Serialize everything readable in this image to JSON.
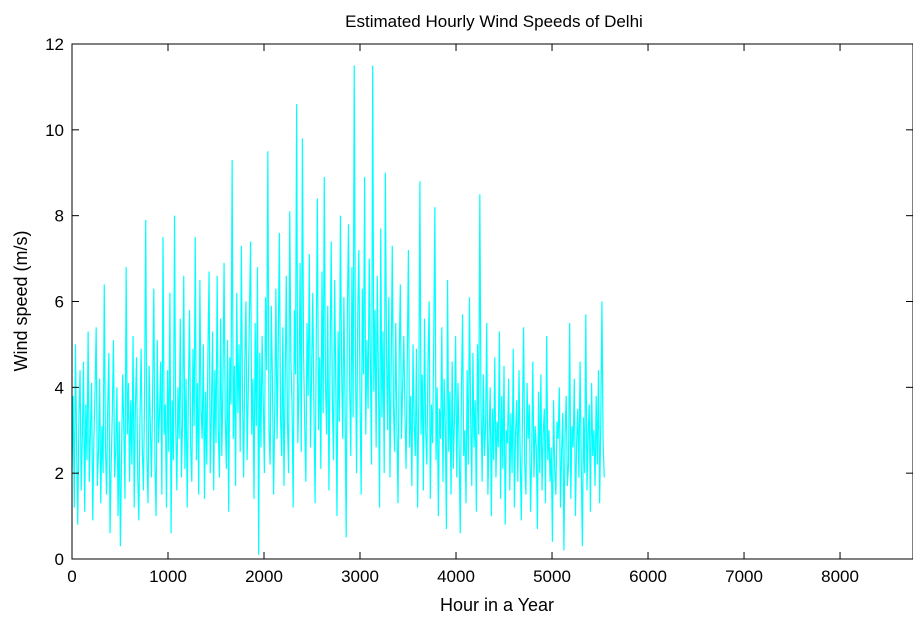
{
  "chart_data": {
    "type": "line",
    "title": "Estimated Hourly Wind Speeds of Delhi",
    "xlabel": "Hour in a Year",
    "ylabel": "Wind speed (m/s)",
    "xlim": [
      0,
      8760
    ],
    "ylim": [
      0,
      12
    ],
    "xticks": [
      0,
      1000,
      2000,
      3000,
      4000,
      5000,
      6000,
      7000,
      8000
    ],
    "yticks": [
      0,
      2,
      4,
      6,
      8,
      10,
      12
    ],
    "grid": false,
    "legend": "none",
    "line_color": "#00FFFF",
    "sampling_note_hidden": true,
    "series": [
      {
        "x_start": 0,
        "x_step": 12,
        "values": [
          2.1,
          3.8,
          1.2,
          5.0,
          2.6,
          0.8,
          3.3,
          4.4,
          1.6,
          2.9,
          4.6,
          1.1,
          3.6,
          2.3,
          5.3,
          1.8,
          3.0,
          4.1,
          0.9,
          2.8,
          3.9,
          5.4,
          1.7,
          2.5,
          4.2,
          1.3,
          3.1,
          2.0,
          6.4,
          2.7,
          1.5,
          3.5,
          4.8,
          0.6,
          2.2,
          3.4,
          5.1,
          1.9,
          2.6,
          4.0,
          1.0,
          3.2,
          0.3,
          2.4,
          4.3,
          3.0,
          1.4,
          6.8,
          2.9,
          4.1,
          1.8,
          3.7,
          2.2,
          5.2,
          1.2,
          3.5,
          4.7,
          2.0,
          0.9,
          3.3,
          4.9,
          2.6,
          1.6,
          3.8,
          7.9,
          2.4,
          1.3,
          4.5,
          3.1,
          1.9,
          3.9,
          6.3,
          2.2,
          1.0,
          5.1,
          2.7,
          3.4,
          4.6,
          1.5,
          7.5,
          2.9,
          3.6,
          1.2,
          4.4,
          2.5,
          6.2,
          0.6,
          3.7,
          2.3,
          8.0,
          3.2,
          1.6,
          4.0,
          2.8,
          5.6,
          1.9,
          3.3,
          6.6,
          2.1,
          4.2,
          1.2,
          3.8,
          5.8,
          2.6,
          1.8,
          4.9,
          3.1,
          7.5,
          2.3,
          4.1,
          1.5,
          6.5,
          3.5,
          2.8,
          5.0,
          1.4,
          3.9,
          2.2,
          4.8,
          6.7,
          2.0,
          3.4,
          5.3,
          1.6,
          4.4,
          2.7,
          6.6,
          3.0,
          1.9,
          5.6,
          2.4,
          4.0,
          6.9,
          3.3,
          2.1,
          5.1,
          1.1,
          4.7,
          3.6,
          9.3,
          2.8,
          4.5,
          1.7,
          6.2,
          3.4,
          5.0,
          2.5,
          7.3,
          3.8,
          1.9,
          4.6,
          6.0,
          2.3,
          3.9,
          5.7,
          7.4,
          2.9,
          4.2,
          1.4,
          5.5,
          3.1,
          6.8,
          0.1,
          4.8,
          2.6,
          5.2,
          3.7,
          2.0,
          6.1,
          4.4,
          9.5,
          3.0,
          2.2,
          5.9,
          4.1,
          1.5,
          3.5,
          6.3,
          2.8,
          4.9,
          7.6,
          3.3,
          2.4,
          5.4,
          1.7,
          4.0,
          6.6,
          3.2,
          2.0,
          8.1,
          4.6,
          3.6,
          1.2,
          5.8,
          4.3,
          10.6,
          2.7,
          3.9,
          6.9,
          2.5,
          9.8,
          4.8,
          3.1,
          1.8,
          5.5,
          3.8,
          7.1,
          2.6,
          4.4,
          6.2,
          3.5,
          1.3,
          5.0,
          8.4,
          3.0,
          4.7,
          2.1,
          6.7,
          3.4,
          8.9,
          4.2,
          2.9,
          5.9,
          1.6,
          4.6,
          7.4,
          3.7,
          2.3,
          6.5,
          4.0,
          1.0,
          5.3,
          3.2,
          8.0,
          4.5,
          2.8,
          6.1,
          3.6,
          0.5,
          5.7,
          7.8,
          4.1,
          2.4,
          6.8,
          3.3,
          11.5,
          4.9,
          2.0,
          5.6,
          7.2,
          3.8,
          1.5,
          6.3,
          4.3,
          8.9,
          2.9,
          5.1,
          3.5,
          7.0,
          4.6,
          2.2,
          11.5,
          3.9,
          5.8,
          2.6,
          6.6,
          4.2,
          1.2,
          7.7,
          3.3,
          5.3,
          2.0,
          9.0,
          4.8,
          3.0,
          6.1,
          1.9,
          4.4,
          7.3,
          3.6,
          2.5,
          5.5,
          3.1,
          1.3,
          4.7,
          6.4,
          2.8,
          4.0,
          5.2,
          3.4,
          2.1,
          4.6,
          7.2,
          2.6,
          3.8,
          1.7,
          5.0,
          3.2,
          2.4,
          4.9,
          1.2,
          3.7,
          8.8,
          2.9,
          4.3,
          1.6,
          5.6,
          3.0,
          2.2,
          4.5,
          6.0,
          1.4,
          3.6,
          2.7,
          5.1,
          8.2,
          2.3,
          4.0,
          1.0,
          3.5,
          2.8,
          5.4,
          1.8,
          4.2,
          3.1,
          0.7,
          6.5,
          2.5,
          3.9,
          1.5,
          4.6,
          2.1,
          3.3,
          5.2,
          1.9,
          4.1,
          2.7,
          0.6,
          3.8,
          5.7,
          2.4,
          3.0,
          1.3,
          4.4,
          2.2,
          6.1,
          3.4,
          1.7,
          4.8,
          2.6,
          3.7,
          1.1,
          5.0,
          2.9,
          8.5,
          3.6,
          1.8,
          4.3,
          2.4,
          3.1,
          5.5,
          1.5,
          2.8,
          4.0,
          1.0,
          3.5,
          2.3,
          4.7,
          1.9,
          3.2,
          2.6,
          5.3,
          1.4,
          3.8,
          2.1,
          4.5,
          0.8,
          3.0,
          2.7,
          4.2,
          1.6,
          3.4,
          2.0,
          4.9,
          1.2,
          2.9,
          3.7,
          1.8,
          4.4,
          2.5,
          0.9,
          3.3,
          5.4,
          2.2,
          1.5,
          4.1,
          2.8,
          3.6,
          1.1,
          2.4,
          4.6,
          1.9,
          3.1,
          2.6,
          0.7,
          3.9,
          2.0,
          4.3,
          1.6,
          2.9,
          3.5,
          1.3,
          5.2,
          2.3,
          3.0,
          1.8,
          2.6,
          0.4,
          3.7,
          2.1,
          1.5,
          3.2,
          2.8,
          4.0,
          1.2,
          2.5,
          3.4,
          0.2,
          2.9,
          3.8,
          1.7,
          2.2,
          5.5,
          1.4,
          3.1,
          2.6,
          4.2,
          1.0,
          2.7,
          3.5,
          1.9,
          4.6,
          2.3,
          0.3,
          3.3,
          2.0,
          5.7,
          1.6,
          2.9,
          3.6,
          1.1,
          4.1,
          2.4,
          3.0,
          1.7,
          3.8,
          2.2,
          4.4,
          1.3,
          3.2,
          6.0,
          2.7,
          1.9
        ]
      }
    ]
  }
}
